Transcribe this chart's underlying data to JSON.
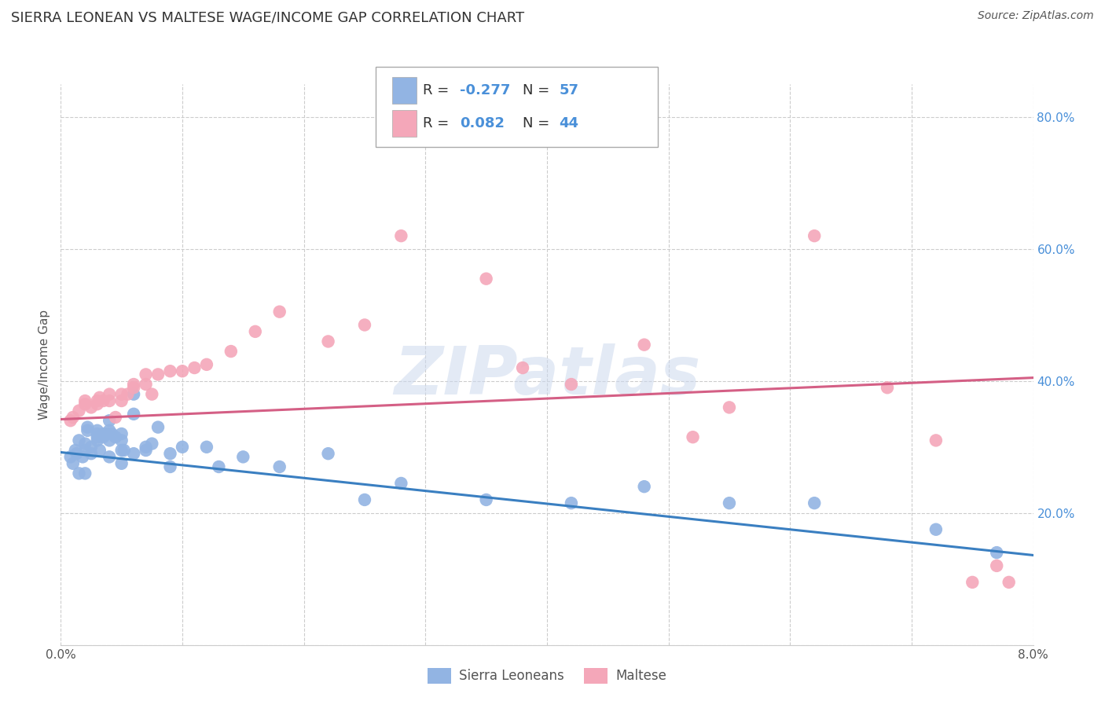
{
  "title": "SIERRA LEONEAN VS MALTESE WAGE/INCOME GAP CORRELATION CHART",
  "source": "Source: ZipAtlas.com",
  "ylabel": "Wage/Income Gap",
  "xlim": [
    0.0,
    0.08
  ],
  "ylim": [
    0.0,
    0.85
  ],
  "ytick_vals": [
    0.0,
    0.2,
    0.4,
    0.6,
    0.8
  ],
  "ytick_labels": [
    "",
    "20.0%",
    "40.0%",
    "60.0%",
    "80.0%"
  ],
  "xtick_vals": [
    0.0,
    0.01,
    0.02,
    0.03,
    0.04,
    0.05,
    0.06,
    0.07,
    0.08
  ],
  "xtick_labels": [
    "0.0%",
    "",
    "",
    "",
    "",
    "",
    "",
    "",
    "8.0%"
  ],
  "blue_color": "#92b4e3",
  "pink_color": "#f4a7b9",
  "blue_line_color": "#3a7fc1",
  "pink_line_color": "#d45f85",
  "watermark_text": "ZIPatlas",
  "legend_blue_label": "Sierra Leoneans",
  "legend_pink_label": "Maltese",
  "legend_r_blue": "-0.277",
  "legend_n_blue": "57",
  "legend_r_pink": "0.082",
  "legend_n_pink": "44",
  "blue_scatter_x": [
    0.0008,
    0.001,
    0.0012,
    0.0013,
    0.0015,
    0.0015,
    0.0018,
    0.002,
    0.002,
    0.002,
    0.0022,
    0.0022,
    0.0025,
    0.0025,
    0.003,
    0.003,
    0.003,
    0.003,
    0.0032,
    0.0035,
    0.0035,
    0.0038,
    0.004,
    0.004,
    0.004,
    0.004,
    0.0042,
    0.0045,
    0.005,
    0.005,
    0.005,
    0.005,
    0.0052,
    0.006,
    0.006,
    0.006,
    0.007,
    0.007,
    0.0075,
    0.008,
    0.009,
    0.009,
    0.01,
    0.012,
    0.013,
    0.015,
    0.018,
    0.022,
    0.025,
    0.028,
    0.035,
    0.042,
    0.048,
    0.055,
    0.062,
    0.072,
    0.077
  ],
  "blue_scatter_y": [
    0.285,
    0.275,
    0.295,
    0.29,
    0.31,
    0.26,
    0.285,
    0.26,
    0.295,
    0.305,
    0.33,
    0.325,
    0.3,
    0.29,
    0.31,
    0.315,
    0.32,
    0.325,
    0.295,
    0.32,
    0.315,
    0.32,
    0.285,
    0.31,
    0.325,
    0.34,
    0.32,
    0.315,
    0.275,
    0.295,
    0.31,
    0.32,
    0.295,
    0.38,
    0.35,
    0.29,
    0.295,
    0.3,
    0.305,
    0.33,
    0.27,
    0.29,
    0.3,
    0.3,
    0.27,
    0.285,
    0.27,
    0.29,
    0.22,
    0.245,
    0.22,
    0.215,
    0.24,
    0.215,
    0.215,
    0.175,
    0.14
  ],
  "pink_scatter_x": [
    0.0008,
    0.001,
    0.0015,
    0.002,
    0.002,
    0.0025,
    0.003,
    0.003,
    0.0032,
    0.0035,
    0.004,
    0.004,
    0.0045,
    0.005,
    0.005,
    0.0055,
    0.006,
    0.006,
    0.007,
    0.007,
    0.0075,
    0.008,
    0.009,
    0.01,
    0.011,
    0.012,
    0.014,
    0.016,
    0.018,
    0.022,
    0.025,
    0.028,
    0.035,
    0.038,
    0.042,
    0.048,
    0.052,
    0.055,
    0.062,
    0.068,
    0.072,
    0.075,
    0.077,
    0.078
  ],
  "pink_scatter_y": [
    0.34,
    0.345,
    0.355,
    0.365,
    0.37,
    0.36,
    0.37,
    0.365,
    0.375,
    0.37,
    0.37,
    0.38,
    0.345,
    0.38,
    0.37,
    0.38,
    0.395,
    0.39,
    0.395,
    0.41,
    0.38,
    0.41,
    0.415,
    0.415,
    0.42,
    0.425,
    0.445,
    0.475,
    0.505,
    0.46,
    0.485,
    0.62,
    0.555,
    0.42,
    0.395,
    0.455,
    0.315,
    0.36,
    0.62,
    0.39,
    0.31,
    0.095,
    0.12,
    0.095
  ],
  "blue_trend_x": [
    0.0,
    0.08
  ],
  "blue_trend_y": [
    0.292,
    0.136
  ],
  "pink_trend_x": [
    0.0,
    0.08
  ],
  "pink_trend_y": [
    0.342,
    0.405
  ],
  "grid_color": "#cccccc",
  "background_color": "#ffffff",
  "text_color_dark": "#333333",
  "text_color_blue": "#4a90d9",
  "text_color_axis": "#555555",
  "title_fontsize": 13,
  "axis_label_fontsize": 11,
  "tick_fontsize": 11,
  "source_fontsize": 10,
  "legend_fontsize": 13
}
